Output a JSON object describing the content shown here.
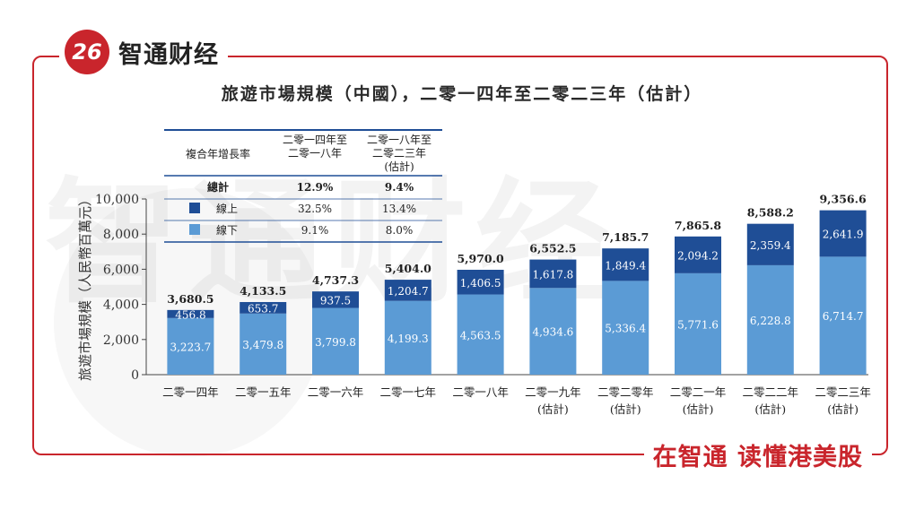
{
  "brand": {
    "logo_mark": "26",
    "name": "智通财经",
    "slogan": "在智通 读懂港美股",
    "accent": "#c9252c"
  },
  "chart_data": {
    "type": "bar",
    "stacked": true,
    "title": "旅遊市場規模（中國），二零一四年至二零二三年（估計）",
    "ylabel": "旅遊市場規模（人民幣百萬元）",
    "ylim": [
      0,
      10000
    ],
    "yticks": [
      "0",
      "2,000",
      "4,000",
      "6,000",
      "8,000",
      "10,000"
    ],
    "categories": [
      [
        "二零一四年"
      ],
      [
        "二零一五年"
      ],
      [
        "二零一六年"
      ],
      [
        "二零一七年"
      ],
      [
        "二零一八年"
      ],
      [
        "二零一九年",
        "(估計)"
      ],
      [
        "二零二零年",
        "(估計)"
      ],
      [
        "二零二一年",
        "(估計)"
      ],
      [
        "二零二二年",
        "(估計)"
      ],
      [
        "二零二三年",
        "(估計)"
      ]
    ],
    "series": [
      {
        "name": "線下",
        "color": "#5b9bd5",
        "values": [
          3223.7,
          3479.8,
          3799.8,
          4199.3,
          4563.5,
          4934.6,
          5336.4,
          5771.6,
          6228.8,
          6714.7
        ],
        "labels": [
          "3,223.7",
          "3,479.8",
          "3,799.8",
          "4,199.3",
          "4,563.5",
          "4,934.6",
          "5,336.4",
          "5,771.6",
          "6,228.8",
          "6,714.7"
        ]
      },
      {
        "name": "線上",
        "color": "#1f4e96",
        "values": [
          456.8,
          653.7,
          937.5,
          1204.7,
          1406.5,
          1617.8,
          1849.4,
          2094.2,
          2359.4,
          2641.9
        ],
        "labels": [
          "456.8",
          "653.7",
          "937.5",
          "1,204.7",
          "1,406.5",
          "1,617.8",
          "1,849.4",
          "2,094.2",
          "2,359.4",
          "2,641.9"
        ]
      }
    ],
    "totals": [
      3680.5,
      4133.5,
      4737.3,
      5404.0,
      5970.0,
      6552.5,
      7185.7,
      7865.8,
      8588.2,
      9356.6
    ],
    "total_labels": [
      "3,680.5",
      "4,133.5",
      "4,737.3",
      "5,404.0",
      "5,970.0",
      "6,552.5",
      "7,185.7",
      "7,865.8",
      "8,588.2",
      "9,356.6"
    ],
    "legend_table": {
      "header": [
        "複合年增長率",
        "二零一四年至\n二零一八年",
        "二零一八年至\n二零二三年\n(估計)"
      ],
      "rows": [
        {
          "label": "總計",
          "swatch": null,
          "v1": "12.9%",
          "v2": "9.4%"
        },
        {
          "label": "線上",
          "swatch": "#1f4e96",
          "v1": "32.5%",
          "v2": "13.4%"
        },
        {
          "label": "線下",
          "swatch": "#5b9bd5",
          "v1": "9.1%",
          "v2": "8.0%"
        }
      ]
    }
  }
}
